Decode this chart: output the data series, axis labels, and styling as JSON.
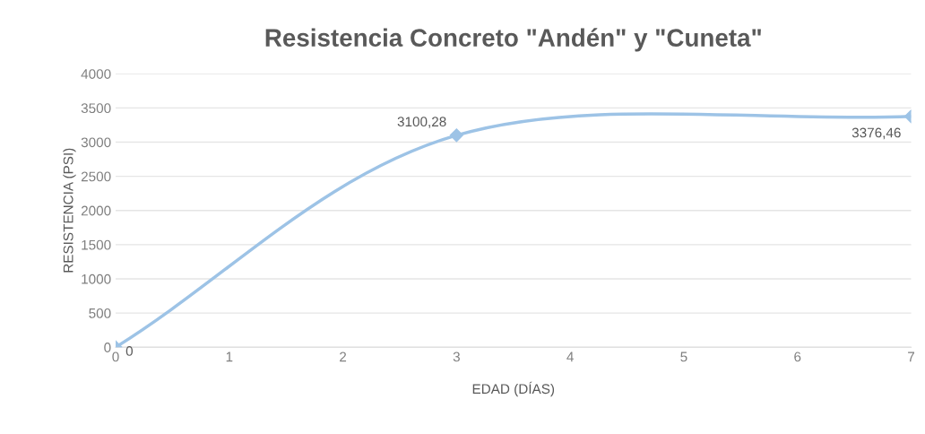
{
  "chart_data": {
    "type": "line",
    "title": "Resistencia Concreto \"Andén\" y \"Cuneta\"",
    "xlabel": "EDAD (DÍAS)",
    "ylabel": "RESISTENCIA (PSI)",
    "x": [
      0,
      3,
      7
    ],
    "series": [
      {
        "color": "#9dc3e6",
        "values": [
          0,
          3100.28,
          3376.46
        ],
        "value_labels": [
          "0",
          "3100,28",
          "3376,46"
        ]
      }
    ],
    "xlim": [
      0,
      7
    ],
    "xticks": [
      0,
      1,
      2,
      3,
      4,
      5,
      6,
      7
    ],
    "ylim": [
      0,
      4000
    ],
    "yticks": [
      0,
      500,
      1000,
      1500,
      2000,
      2500,
      3000,
      3500,
      4000
    ],
    "grid": "y",
    "marker": "diamond",
    "line_style": "solid"
  }
}
